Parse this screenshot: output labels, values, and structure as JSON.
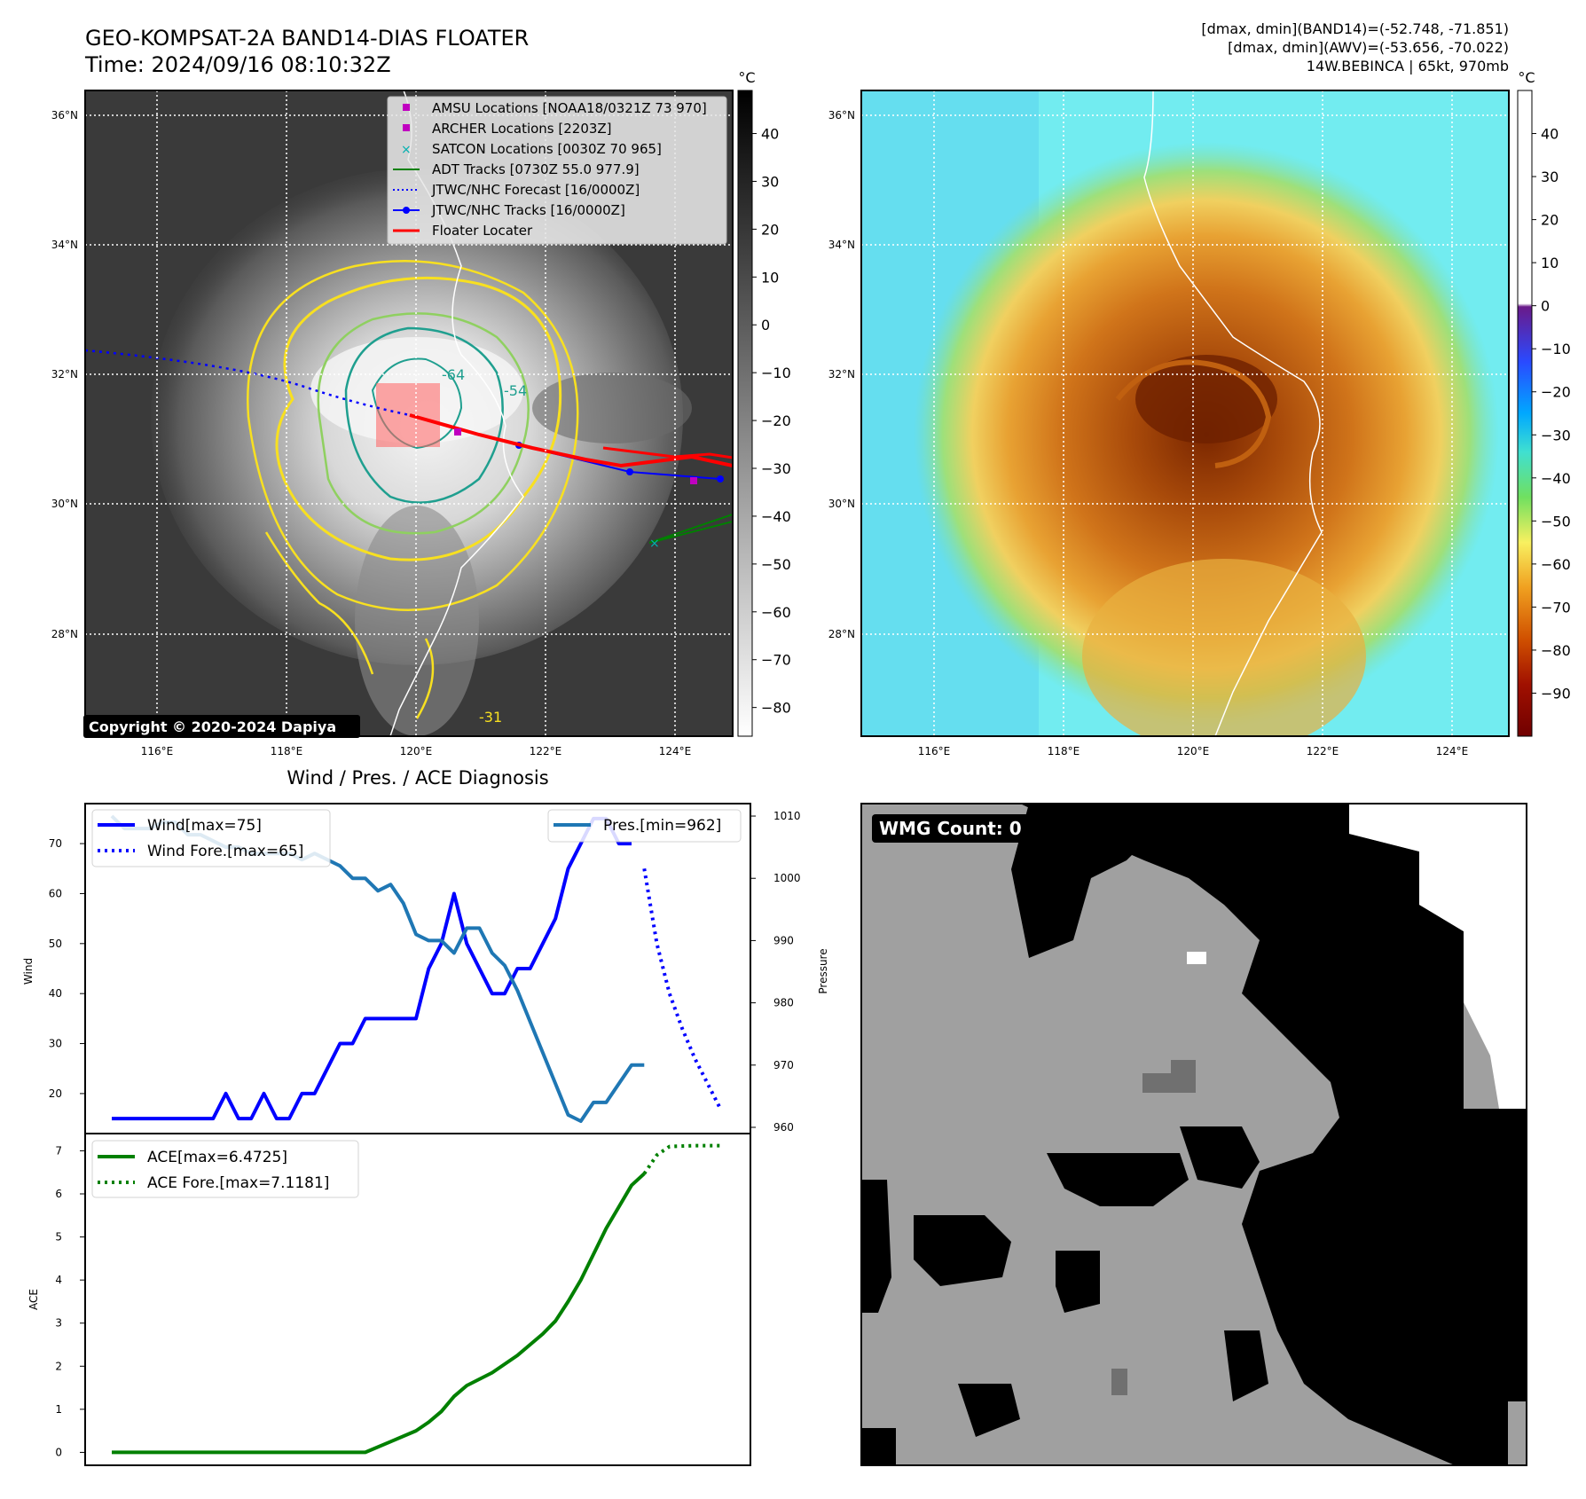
{
  "header": {
    "title": "GEO-KOMPSAT-2A BAND14-DIAS FLOATER",
    "time": "Time: 2024/09/16 08:10:32Z",
    "stats_band14": "[dmax, dmin](BAND14)=(-52.748, -71.851)",
    "stats_awv": "[dmax, dmin](AWV)=(-53.656, -70.022)",
    "storm": "14W.BEBINCA | 65kt, 970mb"
  },
  "copyright": "Copyright © 2020-2024 Dapiya",
  "map": {
    "lat_ticks": [
      "36°N",
      "34°N",
      "32°N",
      "30°N",
      "28°N"
    ],
    "lon_ticks": [
      "116°E",
      "118°E",
      "120°E",
      "122°E",
      "124°E"
    ],
    "contour_labels": [
      "-64",
      "-54",
      "-31"
    ],
    "legend": [
      {
        "label": "AMSU Locations [NOAA18/0321Z 73 970]",
        "color": "#c000c0"
      },
      {
        "label": "ARCHER Locations [2203Z]",
        "color": "#c000c0"
      },
      {
        "label": "SATCON Locations [0030Z 70 965]",
        "color": "#00b0b0"
      },
      {
        "label": "ADT Tracks [0730Z 55.0 977.9]",
        "color": "#008000"
      },
      {
        "label": "JTWC/NHC Forecast [16/0000Z]",
        "color": "#0000ff"
      },
      {
        "label": "JTWC/NHC Tracks [16/0000Z]",
        "color": "#0000ff"
      },
      {
        "label": "Floater Locater",
        "color": "#ff0000"
      }
    ],
    "cbar_ir": {
      "unit": "°C",
      "ticks": [
        "40",
        "30",
        "20",
        "10",
        "0",
        "−10",
        "−20",
        "−30",
        "−40",
        "−50",
        "−60",
        "−70",
        "−80"
      ]
    },
    "cbar_awv": {
      "unit": "°C",
      "ticks": [
        "40",
        "30",
        "20",
        "10",
        "0",
        "−10",
        "−20",
        "−30",
        "−40",
        "−50",
        "−60",
        "−70",
        "−80",
        "−90"
      ]
    }
  },
  "diag_title": "Wind / Pres. / ACE Diagnosis",
  "wmg": {
    "label": "WMG Count: 0"
  },
  "chart_data": [
    {
      "type": "line",
      "title": "",
      "ylabel": "Wind",
      "ylabel2": "Pressure",
      "ylim": [
        12,
        78
      ],
      "ylim2": [
        959,
        1012
      ],
      "yticks": [
        "20",
        "30",
        "40",
        "50",
        "60",
        "70"
      ],
      "yticks2": [
        "960",
        "970",
        "980",
        "990",
        "1000",
        "1010"
      ],
      "series": [
        {
          "name": "Wind[max=75]",
          "color": "#0000ff",
          "style": "solid",
          "x": [
            0,
            1,
            2,
            3,
            4,
            5,
            6,
            7,
            8,
            9,
            10,
            11,
            12,
            13,
            14,
            15,
            16,
            17,
            18,
            19,
            20,
            21,
            22,
            23,
            24,
            25,
            26,
            27,
            28,
            29,
            30,
            31,
            32,
            33,
            34,
            35,
            36,
            37,
            38,
            39,
            40,
            41
          ],
          "values": [
            15,
            15,
            15,
            15,
            15,
            15,
            15,
            15,
            15,
            20,
            15,
            15,
            20,
            15,
            15,
            20,
            20,
            25,
            30,
            30,
            35,
            35,
            35,
            35,
            35,
            45,
            50,
            60,
            50,
            45,
            40,
            40,
            45,
            45,
            50,
            55,
            65,
            70,
            75,
            75,
            70,
            70
          ]
        },
        {
          "name": "Wind Fore.[max=65]",
          "color": "#0000ff",
          "style": "dotted",
          "x": [
            42,
            43,
            44,
            45,
            46,
            47,
            48
          ],
          "values": [
            65,
            50,
            40,
            33,
            27,
            22,
            17
          ]
        },
        {
          "name": "Pres.[min=962]",
          "color": "#1f77b4",
          "style": "solid",
          "axis": "right",
          "x": [
            0,
            1,
            2,
            3,
            4,
            5,
            6,
            7,
            8,
            9,
            10,
            11,
            12,
            13,
            14,
            15,
            16,
            17,
            18,
            19,
            20,
            21,
            22,
            23,
            24,
            25,
            26,
            27,
            28,
            29,
            30,
            31,
            32,
            33,
            34,
            35,
            36,
            37,
            38,
            39,
            40,
            41,
            42
          ],
          "values": [
            1010,
            1008,
            1008,
            1008,
            1009,
            1009,
            1007,
            1007,
            1006,
            1005,
            1005,
            1004,
            1004,
            1004,
            1004,
            1003,
            1004,
            1003,
            1002,
            1000,
            1000,
            998,
            999,
            996,
            991,
            990,
            990,
            988,
            992,
            992,
            988,
            986,
            982,
            977,
            972,
            967,
            962,
            961,
            964,
            964,
            967,
            970,
            970
          ]
        }
      ]
    },
    {
      "type": "line",
      "ylabel": "ACE",
      "ylim": [
        -0.3,
        7.4
      ],
      "yticks": [
        "0",
        "1",
        "2",
        "3",
        "4",
        "5",
        "6",
        "7"
      ],
      "series": [
        {
          "name": "ACE[max=6.4725]",
          "color": "#008000",
          "style": "solid",
          "x": [
            0,
            5,
            10,
            15,
            20,
            22,
            24,
            25,
            26,
            27,
            28,
            30,
            32,
            33,
            34,
            35,
            36,
            37,
            38,
            39,
            40,
            41,
            42
          ],
          "values": [
            0,
            0,
            0,
            0,
            0,
            0.25,
            0.5,
            0.7,
            0.95,
            1.3,
            1.55,
            1.85,
            2.25,
            2.5,
            2.75,
            3.05,
            3.5,
            4.0,
            4.6,
            5.2,
            5.7,
            6.2,
            6.47
          ]
        },
        {
          "name": "ACE Fore.[max=7.1181]",
          "color": "#008000",
          "style": "dotted",
          "x": [
            42,
            43,
            44,
            46,
            48
          ],
          "values": [
            6.47,
            6.9,
            7.1,
            7.12,
            7.12
          ]
        }
      ]
    }
  ]
}
